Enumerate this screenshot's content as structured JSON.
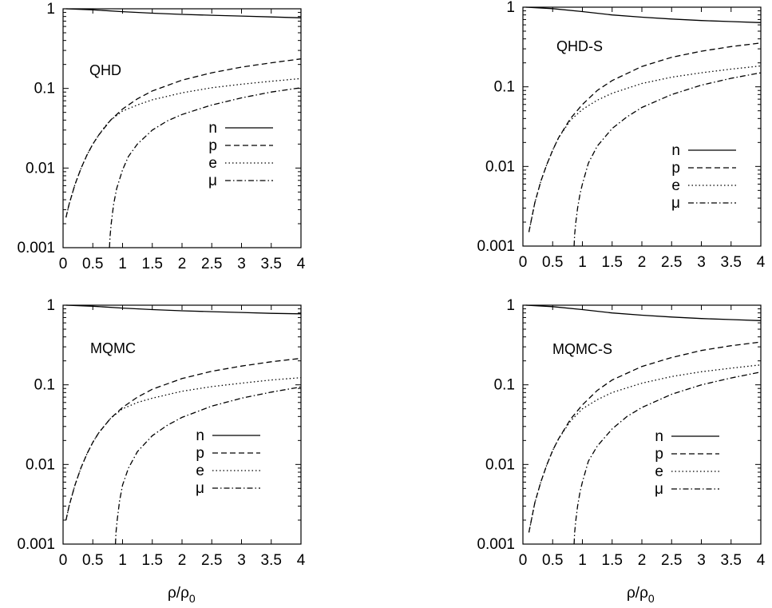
{
  "figure": {
    "xlabel_main": "ρ/ρ",
    "xlabel_sub": "0"
  },
  "chart_data": [
    {
      "type": "line",
      "label": "QHD",
      "xlabel": "",
      "ylabel": "",
      "y_scale": "log",
      "xlim": [
        0,
        4
      ],
      "ylim": [
        0.001,
        1
      ],
      "grid": false,
      "legend_position": "center-right",
      "x_tick_labels": [
        "0",
        "0.5",
        "1",
        "1.5",
        "2",
        "2.5",
        "3",
        "3.5",
        "4"
      ],
      "y_tick_labels": [
        "1",
        "0.1",
        "0.01",
        "0.001"
      ],
      "series": [
        {
          "name": "n",
          "style": "solid",
          "x": [
            0.05,
            0.5,
            1,
            1.5,
            2,
            2.5,
            3,
            3.5,
            4
          ],
          "y": [
            1.0,
            0.97,
            0.92,
            0.88,
            0.85,
            0.83,
            0.81,
            0.79,
            0.77
          ]
        },
        {
          "name": "p",
          "style": "dashed",
          "x": [
            0.05,
            0.1,
            0.2,
            0.3,
            0.4,
            0.5,
            0.6,
            0.8,
            1,
            1.25,
            1.5,
            2,
            2.5,
            3,
            3.5,
            4
          ],
          "y": [
            0.0024,
            0.0035,
            0.0062,
            0.0098,
            0.0145,
            0.02,
            0.026,
            0.04,
            0.055,
            0.074,
            0.093,
            0.127,
            0.157,
            0.185,
            0.21,
            0.235
          ]
        },
        {
          "name": "e",
          "style": "dotted",
          "x": [
            0.05,
            0.1,
            0.2,
            0.3,
            0.4,
            0.5,
            0.6,
            0.7,
            0.8,
            1,
            1.25,
            1.5,
            2,
            2.5,
            3,
            3.5,
            4
          ],
          "y": [
            0.0024,
            0.0035,
            0.0062,
            0.0098,
            0.0145,
            0.02,
            0.026,
            0.033,
            0.04,
            0.052,
            0.062,
            0.072,
            0.088,
            0.102,
            0.113,
            0.123,
            0.133
          ]
        },
        {
          "name": "μ",
          "style": "dashdot",
          "x": [
            0.78,
            0.79,
            0.81,
            0.85,
            0.9,
            1,
            1.1,
            1.25,
            1.5,
            1.75,
            2,
            2.5,
            3,
            3.5,
            4
          ],
          "y": [
            0.001,
            0.0014,
            0.002,
            0.0035,
            0.0055,
            0.0095,
            0.014,
            0.02,
            0.03,
            0.039,
            0.047,
            0.062,
            0.076,
            0.09,
            0.102
          ]
        }
      ]
    },
    {
      "type": "line",
      "label": "QHD-S",
      "xlabel": "",
      "ylabel": "",
      "y_scale": "log",
      "xlim": [
        0,
        4
      ],
      "ylim": [
        0.001,
        1
      ],
      "grid": false,
      "legend_position": "bottom-right",
      "x_tick_labels": [
        "0",
        "0.5",
        "1",
        "1.5",
        "2",
        "2.5",
        "3",
        "3.5",
        "4"
      ],
      "y_tick_labels": [
        "1",
        "0.1",
        "0.01",
        "0.001"
      ],
      "series": [
        {
          "name": "n",
          "style": "solid",
          "x": [
            0.05,
            0.5,
            1,
            1.5,
            2,
            2.5,
            3,
            3.5,
            4
          ],
          "y": [
            1.0,
            0.96,
            0.88,
            0.8,
            0.75,
            0.71,
            0.68,
            0.66,
            0.64
          ]
        },
        {
          "name": "p",
          "style": "dashed",
          "x": [
            0.1,
            0.2,
            0.3,
            0.4,
            0.5,
            0.6,
            0.8,
            1,
            1.25,
            1.5,
            2,
            2.5,
            3,
            3.5,
            4
          ],
          "y": [
            0.0015,
            0.0035,
            0.0065,
            0.0105,
            0.016,
            0.023,
            0.04,
            0.06,
            0.09,
            0.12,
            0.18,
            0.235,
            0.28,
            0.32,
            0.355
          ]
        },
        {
          "name": "e",
          "style": "dotted",
          "x": [
            0.1,
            0.2,
            0.3,
            0.4,
            0.5,
            0.6,
            0.8,
            1,
            1.25,
            1.5,
            2,
            2.5,
            3,
            3.5,
            4
          ],
          "y": [
            0.0015,
            0.0035,
            0.0065,
            0.0105,
            0.016,
            0.023,
            0.038,
            0.052,
            0.068,
            0.083,
            0.11,
            0.132,
            0.15,
            0.167,
            0.183
          ]
        },
        {
          "name": "μ",
          "style": "dashdot",
          "x": [
            0.86,
            0.87,
            0.89,
            0.92,
            0.96,
            1,
            1.1,
            1.25,
            1.5,
            1.75,
            2,
            2.5,
            3,
            3.5,
            4
          ],
          "y": [
            0.001,
            0.0014,
            0.002,
            0.003,
            0.0045,
            0.006,
            0.011,
            0.018,
            0.03,
            0.042,
            0.055,
            0.08,
            0.105,
            0.128,
            0.15
          ]
        }
      ]
    },
    {
      "type": "line",
      "label": "MQMC",
      "xlabel": "",
      "ylabel": "",
      "y_scale": "log",
      "xlim": [
        0,
        4
      ],
      "ylim": [
        0.001,
        1
      ],
      "grid": false,
      "legend_position": "center-right",
      "x_tick_labels": [
        "0",
        "0.5",
        "1",
        "1.5",
        "2",
        "2.5",
        "3",
        "3.5",
        "4"
      ],
      "y_tick_labels": [
        "1",
        "0.1",
        "0.01",
        "0.001"
      ],
      "series": [
        {
          "name": "n",
          "style": "solid",
          "x": [
            0.05,
            0.5,
            1,
            1.5,
            2,
            2.5,
            3,
            3.5,
            4
          ],
          "y": [
            1.0,
            0.97,
            0.92,
            0.88,
            0.85,
            0.83,
            0.81,
            0.79,
            0.78
          ]
        },
        {
          "name": "p",
          "style": "dashed",
          "x": [
            0.05,
            0.1,
            0.2,
            0.3,
            0.4,
            0.5,
            0.6,
            0.8,
            1,
            1.25,
            1.5,
            2,
            2.5,
            3,
            3.5,
            4
          ],
          "y": [
            0.002,
            0.003,
            0.0055,
            0.009,
            0.0135,
            0.019,
            0.025,
            0.038,
            0.052,
            0.07,
            0.088,
            0.12,
            0.148,
            0.172,
            0.195,
            0.215
          ]
        },
        {
          "name": "e",
          "style": "dotted",
          "x": [
            0.05,
            0.1,
            0.2,
            0.3,
            0.4,
            0.5,
            0.6,
            0.7,
            0.8,
            1,
            1.25,
            1.5,
            2,
            2.5,
            3,
            3.5,
            4
          ],
          "y": [
            0.002,
            0.003,
            0.0055,
            0.009,
            0.0135,
            0.019,
            0.025,
            0.031,
            0.038,
            0.05,
            0.06,
            0.068,
            0.083,
            0.095,
            0.105,
            0.115,
            0.123
          ]
        },
        {
          "name": "μ",
          "style": "dashdot",
          "x": [
            0.88,
            0.89,
            0.91,
            0.95,
            1,
            1.1,
            1.25,
            1.5,
            1.75,
            2,
            2.5,
            3,
            3.5,
            4
          ],
          "y": [
            0.001,
            0.0014,
            0.002,
            0.0035,
            0.0055,
            0.009,
            0.0145,
            0.023,
            0.031,
            0.039,
            0.054,
            0.068,
            0.081,
            0.094
          ]
        }
      ]
    },
    {
      "type": "line",
      "label": "MQMC-S",
      "xlabel": "",
      "ylabel": "",
      "y_scale": "log",
      "xlim": [
        0,
        4
      ],
      "ylim": [
        0.001,
        1
      ],
      "grid": false,
      "legend_position": "bottom-right",
      "x_tick_labels": [
        "0",
        "0.5",
        "1",
        "1.5",
        "2",
        "2.5",
        "3",
        "3.5",
        "4"
      ],
      "y_tick_labels": [
        "1",
        "0.1",
        "0.01",
        "0.001"
      ],
      "series": [
        {
          "name": "n",
          "style": "solid",
          "x": [
            0.05,
            0.5,
            1,
            1.5,
            2,
            2.5,
            3,
            3.5,
            4
          ],
          "y": [
            1.0,
            0.96,
            0.88,
            0.8,
            0.75,
            0.71,
            0.68,
            0.66,
            0.64
          ]
        },
        {
          "name": "p",
          "style": "dashed",
          "x": [
            0.1,
            0.2,
            0.3,
            0.4,
            0.5,
            0.6,
            0.8,
            1,
            1.25,
            1.5,
            2,
            2.5,
            3,
            3.5,
            4
          ],
          "y": [
            0.0014,
            0.0033,
            0.006,
            0.0098,
            0.015,
            0.021,
            0.037,
            0.056,
            0.085,
            0.115,
            0.17,
            0.22,
            0.27,
            0.31,
            0.345
          ]
        },
        {
          "name": "e",
          "style": "dotted",
          "x": [
            0.1,
            0.2,
            0.3,
            0.4,
            0.5,
            0.6,
            0.8,
            1,
            1.25,
            1.5,
            2,
            2.5,
            3,
            3.5,
            4
          ],
          "y": [
            0.0014,
            0.0033,
            0.006,
            0.0098,
            0.015,
            0.021,
            0.035,
            0.05,
            0.065,
            0.08,
            0.105,
            0.127,
            0.146,
            0.162,
            0.178
          ]
        },
        {
          "name": "μ",
          "style": "dashdot",
          "x": [
            0.86,
            0.87,
            0.89,
            0.92,
            0.96,
            1,
            1.1,
            1.25,
            1.5,
            1.75,
            2,
            2.5,
            3,
            3.5,
            4
          ],
          "y": [
            0.001,
            0.0014,
            0.002,
            0.003,
            0.0045,
            0.006,
            0.011,
            0.017,
            0.028,
            0.04,
            0.052,
            0.076,
            0.1,
            0.122,
            0.145
          ]
        }
      ]
    }
  ]
}
